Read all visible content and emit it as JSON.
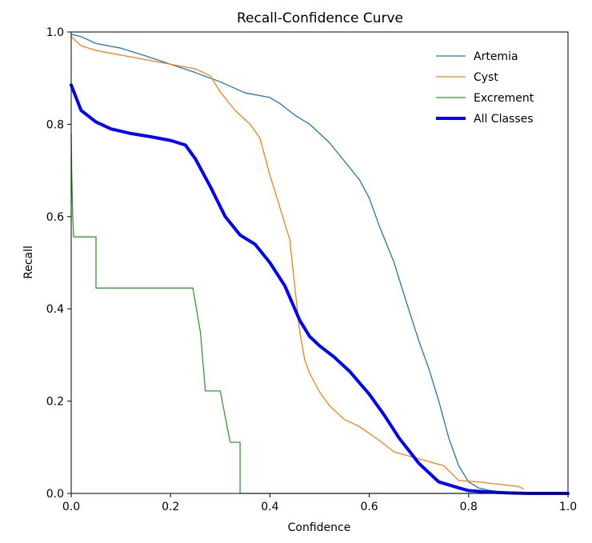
{
  "chart_data": {
    "type": "line",
    "title": "Recall-Confidence Curve",
    "xlabel": "Confidence",
    "ylabel": "Recall",
    "xlim": [
      0.0,
      1.0
    ],
    "ylim": [
      0.0,
      1.0
    ],
    "xticks": [
      "0.0",
      "0.2",
      "0.4",
      "0.6",
      "0.8",
      "1.0"
    ],
    "yticks": [
      "0.0",
      "0.2",
      "0.4",
      "0.6",
      "0.8",
      "1.0"
    ],
    "grid": false,
    "legend_position": "top-right",
    "series": [
      {
        "name": "Artemia",
        "color": "#1f77b4",
        "width": 1.3,
        "x": [
          0.0,
          0.02,
          0.05,
          0.1,
          0.15,
          0.2,
          0.25,
          0.3,
          0.35,
          0.4,
          0.42,
          0.45,
          0.48,
          0.5,
          0.52,
          0.55,
          0.58,
          0.6,
          0.62,
          0.65,
          0.67,
          0.7,
          0.72,
          0.74,
          0.76,
          0.78,
          0.8,
          0.82,
          0.84,
          0.86,
          0.9,
          0.95,
          1.0
        ],
        "y": [
          0.995,
          0.99,
          0.975,
          0.965,
          0.948,
          0.93,
          0.912,
          0.892,
          0.868,
          0.858,
          0.845,
          0.82,
          0.8,
          0.78,
          0.76,
          0.72,
          0.68,
          0.64,
          0.58,
          0.5,
          0.43,
          0.33,
          0.27,
          0.2,
          0.12,
          0.06,
          0.025,
          0.012,
          0.007,
          0.004,
          0.002,
          0.001,
          0.0
        ]
      },
      {
        "name": "Cyst",
        "color": "#ff7f0e",
        "width": 1.3,
        "x": [
          0.0,
          0.02,
          0.05,
          0.1,
          0.15,
          0.2,
          0.25,
          0.28,
          0.3,
          0.33,
          0.36,
          0.38,
          0.4,
          0.42,
          0.44,
          0.45,
          0.46,
          0.47,
          0.48,
          0.5,
          0.52,
          0.55,
          0.58,
          0.6,
          0.62,
          0.65,
          0.7,
          0.75,
          0.78,
          0.82,
          0.86,
          0.9,
          0.91
        ],
        "y": [
          0.99,
          0.97,
          0.96,
          0.95,
          0.94,
          0.93,
          0.92,
          0.905,
          0.87,
          0.83,
          0.8,
          0.77,
          0.69,
          0.62,
          0.55,
          0.45,
          0.35,
          0.29,
          0.26,
          0.22,
          0.19,
          0.16,
          0.145,
          0.13,
          0.115,
          0.09,
          0.075,
          0.06,
          0.028,
          0.025,
          0.02,
          0.015,
          0.01
        ]
      },
      {
        "name": "Excrement",
        "color": "#2ca02c",
        "width": 1.3,
        "x": [
          0.0,
          0.001,
          0.003,
          0.005,
          0.05,
          0.05,
          0.245,
          0.26,
          0.27,
          0.28,
          0.3,
          0.32,
          0.34,
          0.34,
          0.35,
          0.5,
          0.7,
          1.0
        ],
        "y": [
          0.78,
          0.7,
          0.6,
          0.556,
          0.556,
          0.445,
          0.445,
          0.35,
          0.222,
          0.222,
          0.222,
          0.111,
          0.111,
          0.0,
          0.0,
          0.0,
          0.0,
          0.0
        ]
      },
      {
        "name": "All Classes",
        "color": "#0000ff",
        "width": 4,
        "x": [
          0.0,
          0.02,
          0.05,
          0.08,
          0.12,
          0.16,
          0.2,
          0.23,
          0.25,
          0.28,
          0.31,
          0.34,
          0.37,
          0.4,
          0.43,
          0.46,
          0.48,
          0.5,
          0.53,
          0.56,
          0.6,
          0.63,
          0.66,
          0.7,
          0.74,
          0.78,
          0.8,
          0.84,
          0.88,
          0.92,
          1.0
        ],
        "y": [
          0.885,
          0.83,
          0.805,
          0.79,
          0.78,
          0.773,
          0.765,
          0.755,
          0.725,
          0.665,
          0.6,
          0.56,
          0.54,
          0.5,
          0.45,
          0.375,
          0.34,
          0.32,
          0.295,
          0.265,
          0.215,
          0.17,
          0.12,
          0.065,
          0.025,
          0.012,
          0.006,
          0.003,
          0.001,
          0.0,
          0.0
        ]
      }
    ]
  }
}
